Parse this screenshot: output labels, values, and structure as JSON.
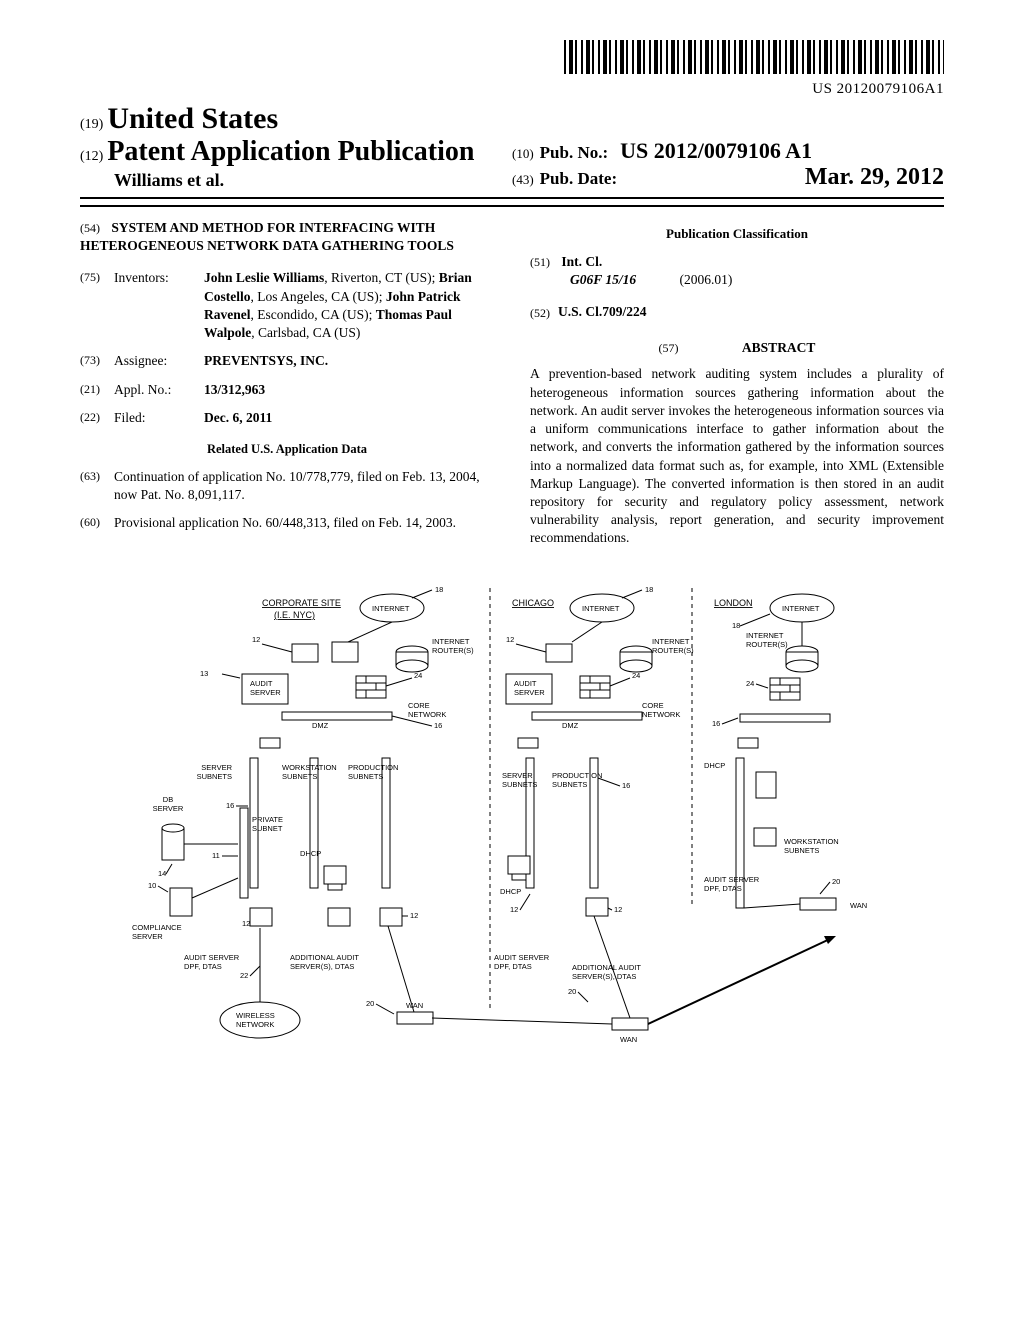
{
  "barcode_number": "US 20120079106A1",
  "header": {
    "line19_num": "(19)",
    "country": "United States",
    "line12_num": "(12)",
    "doc_type": "Patent Application Publication",
    "authors": "Williams et al.",
    "pubno_num": "(10)",
    "pubno_label": "Pub. No.:",
    "pubno_value": "US 2012/0079106 A1",
    "pubdate_num": "(43)",
    "pubdate_label": "Pub. Date:",
    "pubdate_value": "Mar. 29, 2012"
  },
  "left": {
    "title_num": "(54)",
    "title": "SYSTEM AND METHOD FOR INTERFACING WITH HETEROGENEOUS NETWORK DATA GATHERING TOOLS",
    "inventors_num": "(75)",
    "inventors_label": "Inventors:",
    "inventors_text_parts": [
      {
        "t": "John Leslie Williams",
        "b": true
      },
      {
        "t": ", Riverton, CT (US); "
      },
      {
        "t": "Brian Costello",
        "b": true
      },
      {
        "t": ", Los Angeles, CA (US); "
      },
      {
        "t": "John Patrick Ravenel",
        "b": true
      },
      {
        "t": ", Escondido, CA (US); "
      },
      {
        "t": "Thomas Paul Walpole",
        "b": true
      },
      {
        "t": ", Carlsbad, CA (US)"
      }
    ],
    "assignee_num": "(73)",
    "assignee_label": "Assignee:",
    "assignee_value": "PREVENTSYS, INC.",
    "applno_num": "(21)",
    "applno_label": "Appl. No.:",
    "applno_value": "13/312,963",
    "filed_num": "(22)",
    "filed_label": "Filed:",
    "filed_value": "Dec. 6, 2011",
    "related_heading": "Related U.S. Application Data",
    "cont_num": "(63)",
    "cont_text": "Continuation of application No. 10/778,779, filed on Feb. 13, 2004, now Pat. No. 8,091,117.",
    "prov_num": "(60)",
    "prov_text": "Provisional application No. 60/448,313, filed on Feb. 14, 2003."
  },
  "right": {
    "pubclass_heading": "Publication Classification",
    "intcl_num": "(51)",
    "intcl_label": "Int. Cl.",
    "intcl_code": "G06F 15/16",
    "intcl_date": "(2006.01)",
    "uscl_num": "(52)",
    "uscl_label": "U.S. Cl.",
    "uscl_value": "709/224",
    "abstract_num": "(57)",
    "abstract_heading": "ABSTRACT",
    "abstract_text": "A prevention-based network auditing system includes a plurality of heterogeneous information sources gathering information about the network. An audit server invokes the heterogeneous information sources via a uniform communications interface to gather information about the network, and converts the information gathered by the information sources into a normalized data format such as, for example, into XML (Extensible Markup Language). The converted information is then stored in an audit repository for security and regulatory policy assessment, network vulnerability analysis, report generation, and security improvement recommendations."
  },
  "figure": {
    "corporate": "CORPORATE SITE",
    "corporate2": "(I.E. NYC)",
    "chicago": "CHICAGO",
    "london": "LONDON",
    "internet": "INTERNET",
    "internet_routers": "INTERNET\nROUTER(S)",
    "audit_server": "AUDIT\nSERVER",
    "dmz": "DMZ",
    "core_network": "CORE\nNETWORK",
    "server_subnets": "SERVER\nSUBNETS",
    "workstation_subnets": "WORKSTATION\nSUBNETS",
    "production_subnets": "PRODUCTION\nSUBNETS",
    "db_server": "DB\nSERVER",
    "private_subnet": "PRIVATE\nSUBNET",
    "dhcp": "DHCP",
    "compliance_server": "COMPLIANCE\nSERVER",
    "audit_server_dpf": "AUDIT SERVER\nDPF, DTAS",
    "additional_audit": "ADDITIONAL AUDIT\nSERVER(S), DTAS",
    "wireless_network": "WIRELESS\nNETWORK",
    "wan": "WAN",
    "ref": {
      "r18": "18",
      "r12": "12",
      "r13": "13",
      "r24": "24",
      "r16": "16",
      "r11": "11",
      "r14": "14",
      "r10": "10",
      "r22": "22",
      "r20": "20"
    }
  }
}
